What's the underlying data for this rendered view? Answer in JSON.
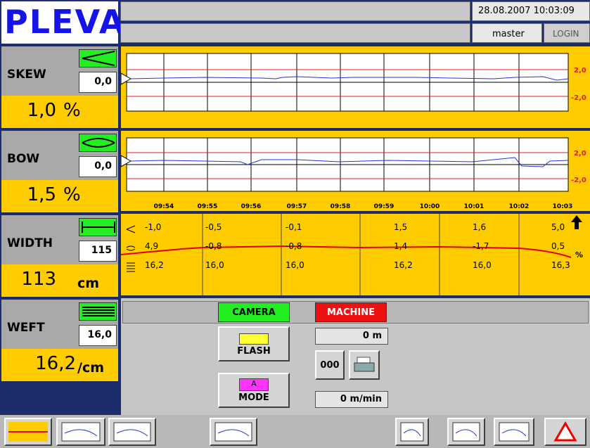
{
  "header": {
    "logo": "PLEVA",
    "datetime": "28.08.2007 10:03:09",
    "user": "master",
    "login": "LOGIN"
  },
  "panels": [
    {
      "label": "SKEW",
      "setpoint": "0,0",
      "value": "1,0",
      "unit": "%"
    },
    {
      "label": "BOW",
      "setpoint": "0,0",
      "value": "1,5",
      "unit": "%"
    },
    {
      "label": "WIDTH",
      "setpoint": "115",
      "value": "113",
      "unit": "cm"
    },
    {
      "label": "WEFT",
      "setpoint": "16,0",
      "value": "16,2",
      "unit": "/cm"
    }
  ],
  "trend": {
    "upper_limit": "2,0",
    "lower_limit": "-2,0",
    "times": [
      "09:54",
      "09:55",
      "09:56",
      "09:57",
      "09:58",
      "09:59",
      "10:00",
      "10:01",
      "10:02",
      "10:03"
    ]
  },
  "table": {
    "rows": [
      [
        "-1,0",
        "-0,5",
        "-0,1",
        "1,5",
        "1,6",
        "5,0"
      ],
      [
        "4,9",
        "-0,8",
        "-0,8",
        "1,4",
        "-1,7",
        "0,5"
      ],
      [
        "16,2",
        "16,0",
        "16,0",
        "16,2",
        "16,0",
        "16,3"
      ]
    ],
    "unit": "%"
  },
  "controls": {
    "camera": "CAMERA",
    "machine": "MACHINE",
    "flash": "FLASH",
    "mode_icon": "A",
    "mode": "MODE",
    "length": "0 m",
    "counter": "000",
    "speed": "0 m/min"
  }
}
